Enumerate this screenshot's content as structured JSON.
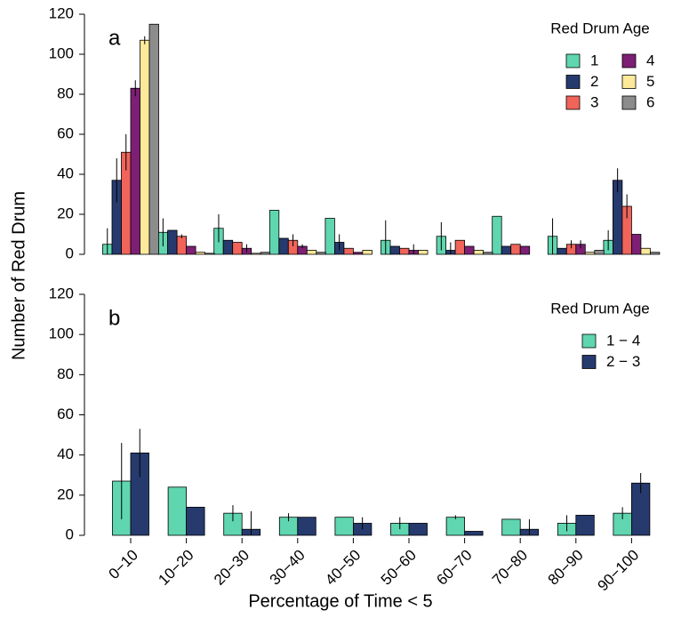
{
  "chart_data": [
    {
      "type": "bar",
      "panel_label": "a",
      "legend_title": "Red Drum Age",
      "y_label": "Number of Red Drum",
      "ylim": [
        0,
        120
      ],
      "yticks": [
        0,
        20,
        40,
        60,
        80,
        100,
        120
      ],
      "series": [
        {
          "name": "1",
          "color": "#5fd6b0",
          "values": [
            5,
            11,
            13,
            22,
            18,
            7,
            9,
            19,
            9,
            7
          ],
          "errors": [
            8,
            7,
            7,
            0,
            0,
            10,
            7,
            0,
            9,
            5
          ]
        },
        {
          "name": "2",
          "color": "#263a6e",
          "values": [
            37,
            12,
            7,
            8,
            6,
            4,
            2,
            4,
            3,
            37
          ],
          "errors": [
            11,
            0,
            0,
            0,
            4,
            0,
            4,
            0,
            0,
            6
          ]
        },
        {
          "name": "3",
          "color": "#f0645a",
          "values": [
            51,
            9,
            6,
            7,
            3,
            3,
            7,
            5,
            5,
            24
          ],
          "errors": [
            9,
            1,
            0,
            3,
            0,
            0,
            0,
            0,
            2,
            6
          ]
        },
        {
          "name": "4",
          "color": "#7d1f74",
          "values": [
            83,
            4,
            3,
            4,
            1,
            2,
            4,
            4,
            5,
            10
          ],
          "errors": [
            4,
            0,
            2,
            1,
            0,
            3,
            0,
            0,
            2,
            0
          ]
        },
        {
          "name": "5",
          "color": "#fde99a",
          "values": [
            107,
            1,
            0.5,
            2,
            2,
            2,
            2,
            0,
            1,
            3
          ],
          "errors": [
            2,
            0,
            0,
            0,
            0,
            0,
            0,
            0,
            0,
            0
          ]
        },
        {
          "name": "6",
          "color": "#8c8c8c",
          "values": [
            115,
            0.5,
            1,
            1,
            0,
            0,
            1,
            0,
            2,
            1
          ],
          "errors": [
            0,
            0,
            0,
            0,
            0,
            0,
            0,
            0,
            0,
            0
          ]
        }
      ]
    },
    {
      "type": "bar",
      "panel_label": "b",
      "legend_title": "Red Drum Age",
      "x_label": "Percentage of Time < 5",
      "categories": [
        "0−10",
        "10−20",
        "20−30",
        "30−40",
        "40−50",
        "50−60",
        "60−70",
        "70−80",
        "80−90",
        "90−100"
      ],
      "ylim": [
        0,
        120
      ],
      "yticks": [
        0,
        20,
        40,
        60,
        80,
        100,
        120
      ],
      "series": [
        {
          "name": "1 − 4",
          "color": "#5fd6b0",
          "values": [
            27,
            24,
            11,
            9,
            9,
            6,
            9,
            8,
            6,
            11
          ],
          "errors": [
            19,
            0,
            4,
            2,
            0,
            3,
            1,
            0,
            4,
            3
          ]
        },
        {
          "name": "2 − 3",
          "color": "#263a6e",
          "values": [
            41,
            14,
            3,
            9,
            6,
            6,
            2,
            3,
            10,
            26
          ],
          "errors": [
            12,
            0,
            9,
            0,
            3,
            0,
            0,
            5,
            0,
            5
          ]
        }
      ]
    }
  ]
}
